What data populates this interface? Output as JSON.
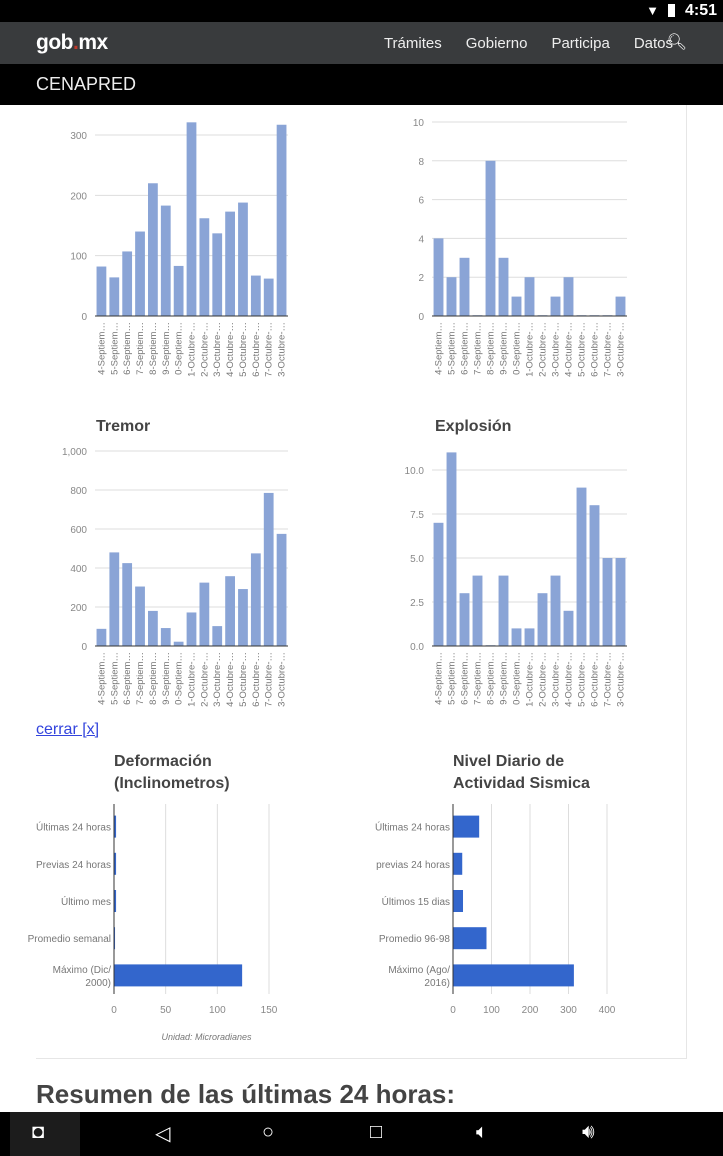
{
  "status": {
    "time": "4:51"
  },
  "nav": {
    "logo_a": "gob",
    "logo_dot": ".",
    "logo_b": "mx",
    "links": [
      "Trámites",
      "Gobierno",
      "Participa",
      "Datos"
    ]
  },
  "sub": {
    "title": "CENAPRED"
  },
  "cerrar": "cerrar [x]",
  "resumen": "Resumen de las últimas 24 horas:",
  "chart_data": [
    {
      "type": "bar",
      "title": "",
      "categories": [
        "4-Septiem…",
        "5-Septiem…",
        "6-Septiem…",
        "7-Septiem…",
        "8-Septiem…",
        "9-Septiem…",
        "0-Septiem…",
        "1-Octubre-…",
        "2-Octubre-…",
        "3-Octubre-…",
        "4-Octubre-…",
        "5-Octubre-…",
        "6-Octubre-…",
        "7-Octubre-…",
        "3-Octubre-…"
      ],
      "values": [
        82,
        64,
        107,
        140,
        220,
        183,
        83,
        321,
        162,
        137,
        173,
        188,
        67,
        62,
        317
      ],
      "yticks": [
        "0",
        "100",
        "200",
        "300"
      ],
      "ylim": [
        0,
        300
      ],
      "color": "#8aa4d6"
    },
    {
      "type": "bar",
      "title": "",
      "categories": [
        "4-Septiem…",
        "5-Septiem…",
        "6-Septiem…",
        "7-Septiem…",
        "8-Septiem…",
        "9-Septiem…",
        "0-Septiem…",
        "1-Octubre-…",
        "2-Octubre-…",
        "3-Octubre-…",
        "4-Octubre-…",
        "5-Octubre-…",
        "6-Octubre-…",
        "7-Octubre-…",
        "3-Octubre-…"
      ],
      "values": [
        4,
        2,
        3,
        0,
        8,
        3,
        1,
        2,
        0,
        1,
        2,
        0,
        0,
        0,
        1
      ],
      "yticks": [
        "0",
        "2",
        "4",
        "6",
        "8",
        "10"
      ],
      "ylim": [
        0,
        10
      ],
      "color": "#8aa4d6"
    },
    {
      "type": "bar",
      "title": "Tremor",
      "categories": [
        "4-Septiem…",
        "5-Septiem…",
        "6-Septiem…",
        "7-Septiem…",
        "8-Septiem…",
        "9-Septiem…",
        "0-Septiem…",
        "1-Octubre-…",
        "2-Octubre-…",
        "3-Octubre-…",
        "4-Octubre-…",
        "5-Octubre-…",
        "6-Octubre-…",
        "7-Octubre-…",
        "3-Octubre-…"
      ],
      "values": [
        88,
        480,
        425,
        305,
        180,
        92,
        22,
        172,
        325,
        102,
        358,
        292,
        475,
        785,
        575
      ],
      "yticks": [
        "0",
        "200",
        "400",
        "600",
        "800",
        "1,000"
      ],
      "ylim": [
        0,
        1000
      ],
      "color": "#8aa4d6"
    },
    {
      "type": "bar",
      "title": "Explosión",
      "categories": [
        "4-Septiem…",
        "5-Septiem…",
        "6-Septiem…",
        "7-Septiem…",
        "8-Septiem…",
        "9-Septiem…",
        "0-Septiem…",
        "1-Octubre-…",
        "2-Octubre-…",
        "3-Octubre-…",
        "4-Octubre-…",
        "5-Octubre-…",
        "6-Octubre-…",
        "7-Octubre-…",
        "3-Octubre-…"
      ],
      "values": [
        7,
        11,
        3,
        4,
        0,
        4,
        1,
        1,
        3,
        4,
        2,
        9,
        8,
        5,
        5
      ],
      "yticks": [
        "0.0",
        "2.5",
        "5.0",
        "7.5",
        "10.0"
      ],
      "ylim": [
        0,
        10
      ],
      "color": "#8aa4d6"
    },
    {
      "type": "bar",
      "orientation": "horizontal",
      "title": "Deformación (Inclinometros)",
      "categories": [
        "Últimas 24 horas",
        "Previas 24 horas",
        "Último mes",
        "Promedio semanal",
        "Máximo (Dic/ 2000)"
      ],
      "values": [
        2,
        2,
        2,
        1,
        124
      ],
      "xticks": [
        "0",
        "50",
        "100",
        "150"
      ],
      "xlim": [
        0,
        150
      ],
      "note": "Unidad: Microradianes",
      "color": "#3366cc"
    },
    {
      "type": "bar",
      "orientation": "horizontal",
      "title": "Nivel Diario de Actividad Sismica",
      "categories": [
        "Últimas 24 horas",
        "previas 24 horas",
        "Últimos 15 dias",
        "Promedio 96-98",
        "Máximo (Ago/ 2016)"
      ],
      "values": [
        68,
        24,
        26,
        87,
        314
      ],
      "xticks": [
        "0",
        "100",
        "200",
        "300",
        "400"
      ],
      "xlim": [
        0,
        400
      ],
      "color": "#3366cc"
    }
  ]
}
